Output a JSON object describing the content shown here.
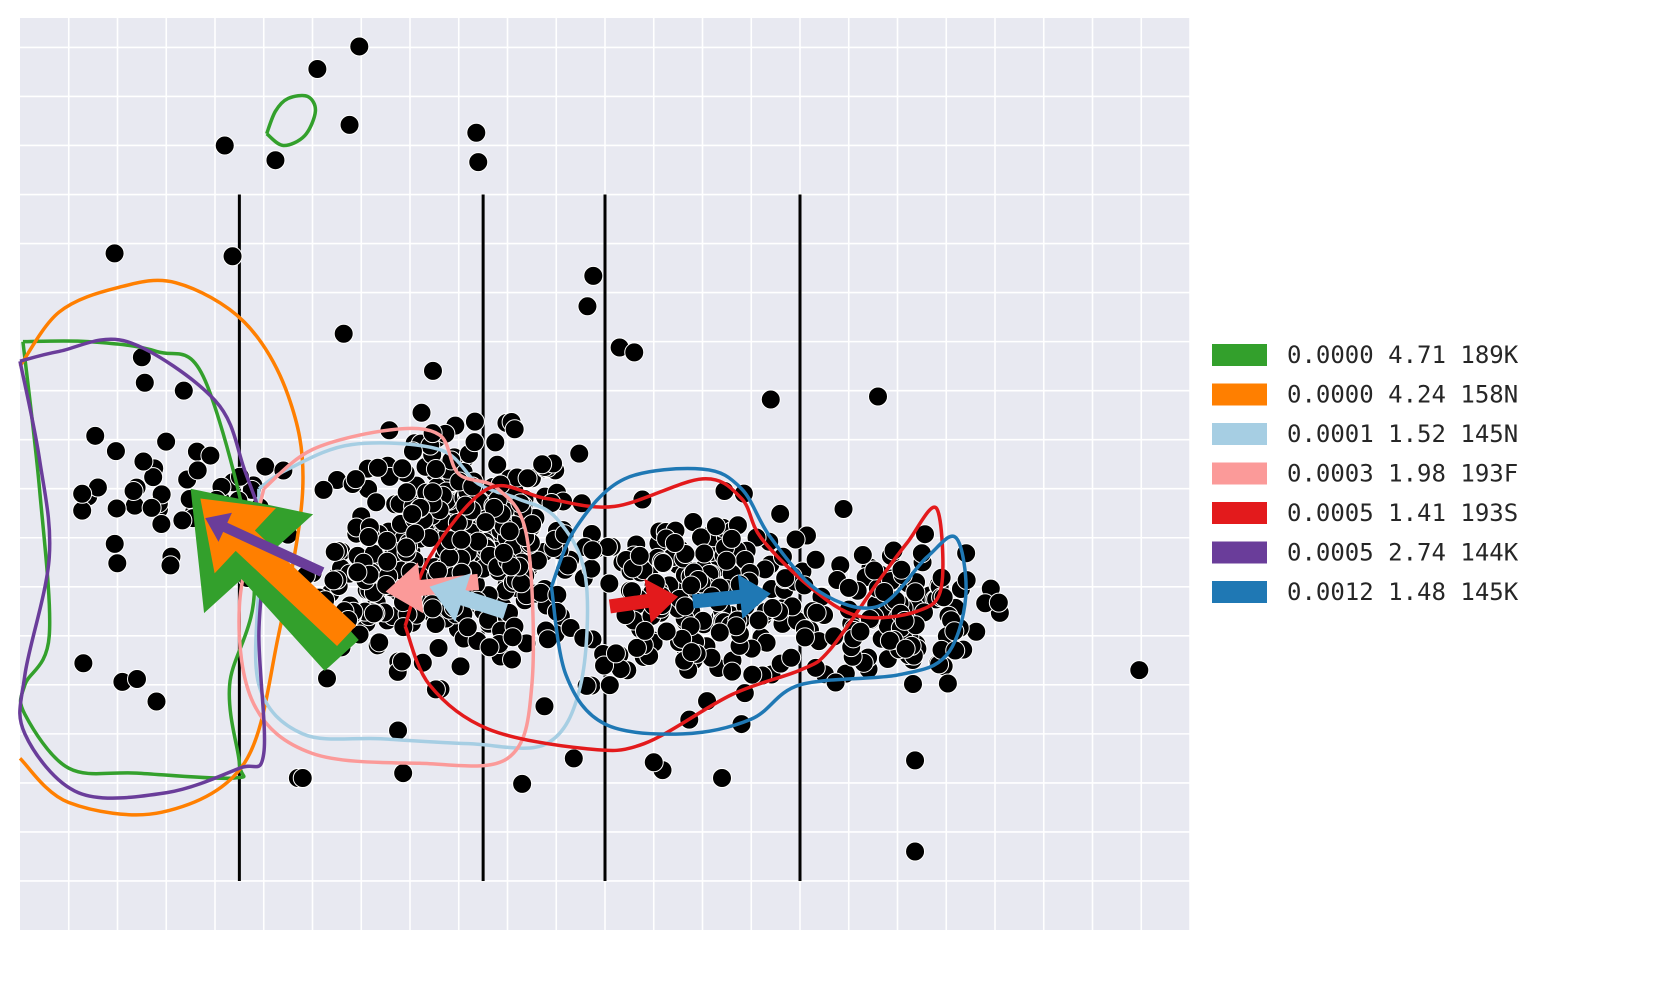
{
  "chart_data": {
    "type": "scatter",
    "title": "",
    "xlabel": "",
    "ylabel": "",
    "xlim": [
      0,
      1200
    ],
    "ylim": [
      0,
      930
    ],
    "grid": true,
    "background": "#e8e9f1",
    "grid_color": "#ffffff",
    "x_ticks": [
      50,
      100,
      150,
      200,
      250,
      300,
      350,
      400,
      450,
      500,
      550,
      600,
      650,
      700,
      750,
      800,
      850,
      900,
      950,
      1000,
      1050,
      1100,
      1150,
      1200
    ],
    "y_ticks": [
      50,
      100,
      150,
      200,
      250,
      300,
      350,
      400,
      450,
      500,
      550,
      600,
      650,
      700,
      750,
      800,
      850,
      900
    ],
    "point_color": "#000000",
    "vertical_lines": [
      {
        "x": 225,
        "y_range": [
          50,
          750
        ]
      },
      {
        "x": 475,
        "y_range": [
          50,
          750
        ]
      },
      {
        "x": 600,
        "y_range": [
          50,
          750
        ]
      },
      {
        "x": 800,
        "y_range": [
          50,
          750
        ]
      }
    ],
    "outlier_points": [
      [
        305,
        878
      ],
      [
        348,
        901
      ],
      [
        338,
        821
      ],
      [
        210,
        800
      ],
      [
        262,
        785
      ],
      [
        468,
        813
      ],
      [
        470,
        783
      ],
      [
        97,
        690
      ],
      [
        218,
        687
      ],
      [
        588,
        667
      ],
      [
        582,
        636
      ],
      [
        332,
        608
      ],
      [
        615,
        594
      ],
      [
        630,
        589
      ],
      [
        770,
        541
      ],
      [
        880,
        544
      ],
      [
        168,
        550
      ],
      [
        125,
        584
      ],
      [
        128,
        558
      ],
      [
        1148,
        265
      ],
      [
        918,
        80
      ],
      [
        918,
        173
      ],
      [
        285,
        155
      ],
      [
        393,
        160
      ],
      [
        515,
        149
      ],
      [
        568,
        175
      ],
      [
        650,
        171
      ],
      [
        720,
        155
      ],
      [
        720,
        155
      ],
      [
        290,
        155
      ],
      [
        65,
        272
      ],
      [
        105,
        253
      ],
      [
        120,
        256
      ],
      [
        140,
        233
      ],
      [
        740,
        210
      ]
    ],
    "cluster_regions": [
      {
        "cx": 450,
        "cy": 390,
        "rx": 110,
        "ry": 100,
        "n": 420
      },
      {
        "cx": 700,
        "cy": 340,
        "rx": 130,
        "ry": 80,
        "n": 240
      },
      {
        "cx": 900,
        "cy": 320,
        "rx": 80,
        "ry": 65,
        "n": 110
      },
      {
        "cx": 160,
        "cy": 430,
        "rx": 90,
        "ry": 70,
        "n": 55
      },
      {
        "cx": 330,
        "cy": 330,
        "rx": 60,
        "ry": 60,
        "n": 40
      }
    ],
    "contours": [
      {
        "color": "#33a02c",
        "name": "189K",
        "points": [
          [
            3,
            600
          ],
          [
            20,
            450
          ],
          [
            30,
            300
          ],
          [
            5,
            250
          ],
          [
            5,
            220
          ],
          [
            50,
            165
          ],
          [
            120,
            160
          ],
          [
            220,
            155
          ],
          [
            225,
            170
          ],
          [
            215,
            250
          ],
          [
            240,
            360
          ],
          [
            190,
            560
          ],
          [
            140,
            590
          ],
          [
            70,
            600
          ],
          [
            3,
            600
          ]
        ]
      },
      {
        "color": "#33a02c",
        "name": "189K-small",
        "points": [
          [
            253,
            812
          ],
          [
            262,
            835
          ],
          [
            275,
            848
          ],
          [
            295,
            850
          ],
          [
            303,
            835
          ],
          [
            292,
            810
          ],
          [
            270,
            800
          ],
          [
            253,
            812
          ]
        ]
      },
      {
        "color": "#ff7f00",
        "name": "158N",
        "points": [
          [
            0,
            575
          ],
          [
            40,
            630
          ],
          [
            100,
            655
          ],
          [
            160,
            660
          ],
          [
            230,
            620
          ],
          [
            275,
            545
          ],
          [
            290,
            450
          ],
          [
            265,
            300
          ],
          [
            230,
            170
          ],
          [
            145,
            120
          ],
          [
            50,
            130
          ],
          [
            0,
            175
          ]
        ]
      },
      {
        "color": "#a6cee3",
        "name": "145N",
        "points": [
          [
            245,
            450
          ],
          [
            275,
            470
          ],
          [
            340,
            495
          ],
          [
            430,
            490
          ],
          [
            470,
            455
          ],
          [
            510,
            440
          ],
          [
            550,
            420
          ],
          [
            580,
            360
          ],
          [
            575,
            250
          ],
          [
            540,
            190
          ],
          [
            460,
            190
          ],
          [
            370,
            195
          ],
          [
            290,
            200
          ],
          [
            245,
            250
          ],
          [
            245,
            360
          ],
          [
            245,
            450
          ]
        ]
      },
      {
        "color": "#fb9a99",
        "name": "193F",
        "points": [
          [
            250,
            450
          ],
          [
            300,
            490
          ],
          [
            380,
            510
          ],
          [
            430,
            505
          ],
          [
            450,
            465
          ],
          [
            490,
            450
          ],
          [
            520,
            400
          ],
          [
            525,
            250
          ],
          [
            500,
            175
          ],
          [
            410,
            170
          ],
          [
            300,
            180
          ],
          [
            240,
            230
          ],
          [
            225,
            330
          ],
          [
            250,
            450
          ]
        ]
      },
      {
        "color": "#e31a1c",
        "name": "193S",
        "points": [
          [
            395,
            310
          ],
          [
            420,
            380
          ],
          [
            480,
            450
          ],
          [
            540,
            440
          ],
          [
            610,
            432
          ],
          [
            700,
            460
          ],
          [
            740,
            440
          ],
          [
            760,
            400
          ],
          [
            810,
            350
          ],
          [
            860,
            320
          ],
          [
            920,
            325
          ],
          [
            945,
            350
          ],
          [
            940,
            430
          ],
          [
            910,
            395
          ],
          [
            880,
            355
          ],
          [
            830,
            285
          ],
          [
            800,
            265
          ],
          [
            730,
            240
          ],
          [
            640,
            190
          ],
          [
            580,
            185
          ],
          [
            480,
            205
          ],
          [
            420,
            250
          ],
          [
            395,
            310
          ]
        ]
      },
      {
        "color": "#6a3d9a",
        "name": "144K",
        "points": [
          [
            0,
            580
          ],
          [
            20,
            480
          ],
          [
            30,
            380
          ],
          [
            5,
            260
          ],
          [
            5,
            200
          ],
          [
            60,
            140
          ],
          [
            150,
            140
          ],
          [
            225,
            165
          ],
          [
            250,
            180
          ],
          [
            245,
            300
          ],
          [
            250,
            400
          ],
          [
            230,
            470
          ],
          [
            200,
            540
          ],
          [
            110,
            600
          ],
          [
            40,
            590
          ],
          [
            0,
            580
          ]
        ]
      },
      {
        "color": "#1f78b4",
        "name": "145K",
        "points": [
          [
            545,
            350
          ],
          [
            570,
            410
          ],
          [
            620,
            460
          ],
          [
            700,
            470
          ],
          [
            740,
            450
          ],
          [
            770,
            400
          ],
          [
            820,
            345
          ],
          [
            880,
            330
          ],
          [
            930,
            380
          ],
          [
            960,
            400
          ],
          [
            970,
            340
          ],
          [
            950,
            280
          ],
          [
            900,
            260
          ],
          [
            800,
            250
          ],
          [
            750,
            215
          ],
          [
            680,
            200
          ],
          [
            600,
            210
          ],
          [
            560,
            260
          ],
          [
            545,
            350
          ]
        ]
      }
    ],
    "arrows": [
      {
        "color": "#33a02c",
        "from": [
          330,
          280
        ],
        "to": [
          175,
          450
        ],
        "width": 46
      },
      {
        "color": "#ff7f00",
        "from": [
          335,
          300
        ],
        "to": [
          185,
          440
        ],
        "width": 28
      },
      {
        "color": "#6a3d9a",
        "from": [
          310,
          365
        ],
        "to": [
          190,
          420
        ],
        "width": 10
      },
      {
        "color": "#fb9a99",
        "from": [
          470,
          355
        ],
        "to": [
          375,
          345
        ],
        "width": 16
      },
      {
        "color": "#a6cee3",
        "from": [
          498,
          325
        ],
        "to": [
          420,
          350
        ],
        "width": 16
      },
      {
        "color": "#e31a1c",
        "from": [
          605,
          330
        ],
        "to": [
          675,
          340
        ],
        "width": 14
      },
      {
        "color": "#1f78b4",
        "from": [
          690,
          335
        ],
        "to": [
          770,
          343
        ],
        "width": 14
      }
    ],
    "legend": {
      "placement": "right",
      "entries": [
        {
          "label": "0.0000 4.71 189K",
          "color": "#33a02c"
        },
        {
          "label": "0.0000 4.24 158N",
          "color": "#ff7f00"
        },
        {
          "label": "0.0001 1.52 145N",
          "color": "#a6cee3"
        },
        {
          "label": "0.0003 1.98 193F",
          "color": "#fb9a99"
        },
        {
          "label": "0.0005 1.41 193S",
          "color": "#e31a1c"
        },
        {
          "label": "0.0005 2.74 144K",
          "color": "#6a3d9a"
        },
        {
          "label": "0.0012 1.48 145K",
          "color": "#1f78b4"
        }
      ]
    }
  }
}
